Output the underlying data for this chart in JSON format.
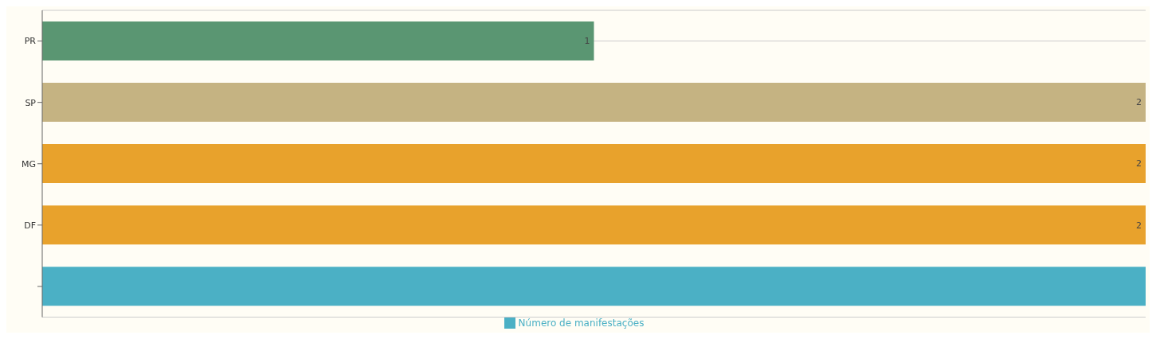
{
  "chart_data": {
    "type": "bar",
    "orientation": "horizontal",
    "categories": [
      "PR",
      "SP",
      "MG",
      "DF",
      null
    ],
    "series": [
      {
        "name": "Número de manifestações",
        "color": "#4bb0c5",
        "colors": [
          "#5a9672",
          "#c5b382",
          "#e8a22c",
          "#e8a22c",
          "#4bb0c5"
        ],
        "values": [
          1,
          2,
          2,
          2,
          2
        ],
        "value_labels": [
          "1",
          "2",
          "2",
          "2",
          null
        ]
      }
    ],
    "grid": "y",
    "legend": "bottom"
  }
}
